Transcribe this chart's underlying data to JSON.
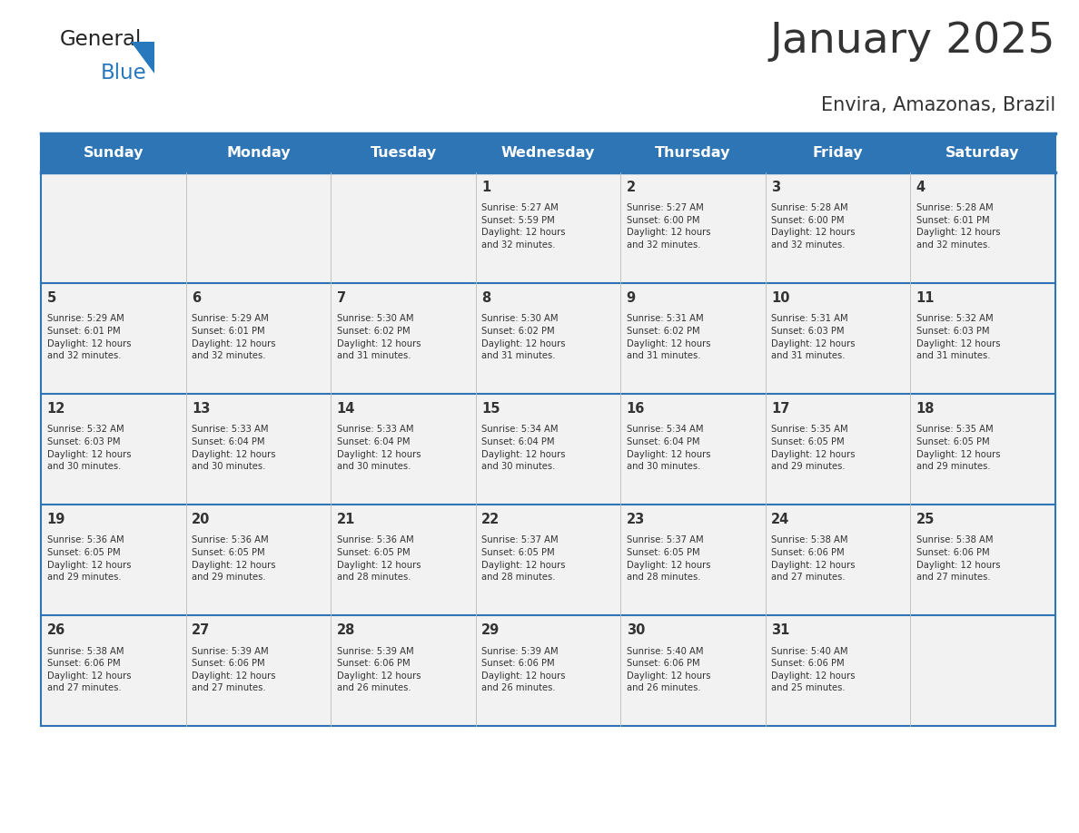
{
  "title": "January 2025",
  "subtitle": "Envira, Amazonas, Brazil",
  "header_bg": "#2E75B6",
  "header_text_color": "#FFFFFF",
  "cell_bg": "#F2F2F2",
  "border_color": "#2E75B6",
  "text_color": "#333333",
  "days_of_week": [
    "Sunday",
    "Monday",
    "Tuesday",
    "Wednesday",
    "Thursday",
    "Friday",
    "Saturday"
  ],
  "calendar": [
    [
      {
        "day": "",
        "info": ""
      },
      {
        "day": "",
        "info": ""
      },
      {
        "day": "",
        "info": ""
      },
      {
        "day": "1",
        "info": "Sunrise: 5:27 AM\nSunset: 5:59 PM\nDaylight: 12 hours\nand 32 minutes."
      },
      {
        "day": "2",
        "info": "Sunrise: 5:27 AM\nSunset: 6:00 PM\nDaylight: 12 hours\nand 32 minutes."
      },
      {
        "day": "3",
        "info": "Sunrise: 5:28 AM\nSunset: 6:00 PM\nDaylight: 12 hours\nand 32 minutes."
      },
      {
        "day": "4",
        "info": "Sunrise: 5:28 AM\nSunset: 6:01 PM\nDaylight: 12 hours\nand 32 minutes."
      }
    ],
    [
      {
        "day": "5",
        "info": "Sunrise: 5:29 AM\nSunset: 6:01 PM\nDaylight: 12 hours\nand 32 minutes."
      },
      {
        "day": "6",
        "info": "Sunrise: 5:29 AM\nSunset: 6:01 PM\nDaylight: 12 hours\nand 32 minutes."
      },
      {
        "day": "7",
        "info": "Sunrise: 5:30 AM\nSunset: 6:02 PM\nDaylight: 12 hours\nand 31 minutes."
      },
      {
        "day": "8",
        "info": "Sunrise: 5:30 AM\nSunset: 6:02 PM\nDaylight: 12 hours\nand 31 minutes."
      },
      {
        "day": "9",
        "info": "Sunrise: 5:31 AM\nSunset: 6:02 PM\nDaylight: 12 hours\nand 31 minutes."
      },
      {
        "day": "10",
        "info": "Sunrise: 5:31 AM\nSunset: 6:03 PM\nDaylight: 12 hours\nand 31 minutes."
      },
      {
        "day": "11",
        "info": "Sunrise: 5:32 AM\nSunset: 6:03 PM\nDaylight: 12 hours\nand 31 minutes."
      }
    ],
    [
      {
        "day": "12",
        "info": "Sunrise: 5:32 AM\nSunset: 6:03 PM\nDaylight: 12 hours\nand 30 minutes."
      },
      {
        "day": "13",
        "info": "Sunrise: 5:33 AM\nSunset: 6:04 PM\nDaylight: 12 hours\nand 30 minutes."
      },
      {
        "day": "14",
        "info": "Sunrise: 5:33 AM\nSunset: 6:04 PM\nDaylight: 12 hours\nand 30 minutes."
      },
      {
        "day": "15",
        "info": "Sunrise: 5:34 AM\nSunset: 6:04 PM\nDaylight: 12 hours\nand 30 minutes."
      },
      {
        "day": "16",
        "info": "Sunrise: 5:34 AM\nSunset: 6:04 PM\nDaylight: 12 hours\nand 30 minutes."
      },
      {
        "day": "17",
        "info": "Sunrise: 5:35 AM\nSunset: 6:05 PM\nDaylight: 12 hours\nand 29 minutes."
      },
      {
        "day": "18",
        "info": "Sunrise: 5:35 AM\nSunset: 6:05 PM\nDaylight: 12 hours\nand 29 minutes."
      }
    ],
    [
      {
        "day": "19",
        "info": "Sunrise: 5:36 AM\nSunset: 6:05 PM\nDaylight: 12 hours\nand 29 minutes."
      },
      {
        "day": "20",
        "info": "Sunrise: 5:36 AM\nSunset: 6:05 PM\nDaylight: 12 hours\nand 29 minutes."
      },
      {
        "day": "21",
        "info": "Sunrise: 5:36 AM\nSunset: 6:05 PM\nDaylight: 12 hours\nand 28 minutes."
      },
      {
        "day": "22",
        "info": "Sunrise: 5:37 AM\nSunset: 6:05 PM\nDaylight: 12 hours\nand 28 minutes."
      },
      {
        "day": "23",
        "info": "Sunrise: 5:37 AM\nSunset: 6:05 PM\nDaylight: 12 hours\nand 28 minutes."
      },
      {
        "day": "24",
        "info": "Sunrise: 5:38 AM\nSunset: 6:06 PM\nDaylight: 12 hours\nand 27 minutes."
      },
      {
        "day": "25",
        "info": "Sunrise: 5:38 AM\nSunset: 6:06 PM\nDaylight: 12 hours\nand 27 minutes."
      }
    ],
    [
      {
        "day": "26",
        "info": "Sunrise: 5:38 AM\nSunset: 6:06 PM\nDaylight: 12 hours\nand 27 minutes."
      },
      {
        "day": "27",
        "info": "Sunrise: 5:39 AM\nSunset: 6:06 PM\nDaylight: 12 hours\nand 27 minutes."
      },
      {
        "day": "28",
        "info": "Sunrise: 5:39 AM\nSunset: 6:06 PM\nDaylight: 12 hours\nand 26 minutes."
      },
      {
        "day": "29",
        "info": "Sunrise: 5:39 AM\nSunset: 6:06 PM\nDaylight: 12 hours\nand 26 minutes."
      },
      {
        "day": "30",
        "info": "Sunrise: 5:40 AM\nSunset: 6:06 PM\nDaylight: 12 hours\nand 26 minutes."
      },
      {
        "day": "31",
        "info": "Sunrise: 5:40 AM\nSunset: 6:06 PM\nDaylight: 12 hours\nand 25 minutes."
      },
      {
        "day": "",
        "info": ""
      }
    ]
  ],
  "logo_general_color": "#222222",
  "logo_blue_color": "#2878BE",
  "fig_width": 11.88,
  "fig_height": 9.18
}
